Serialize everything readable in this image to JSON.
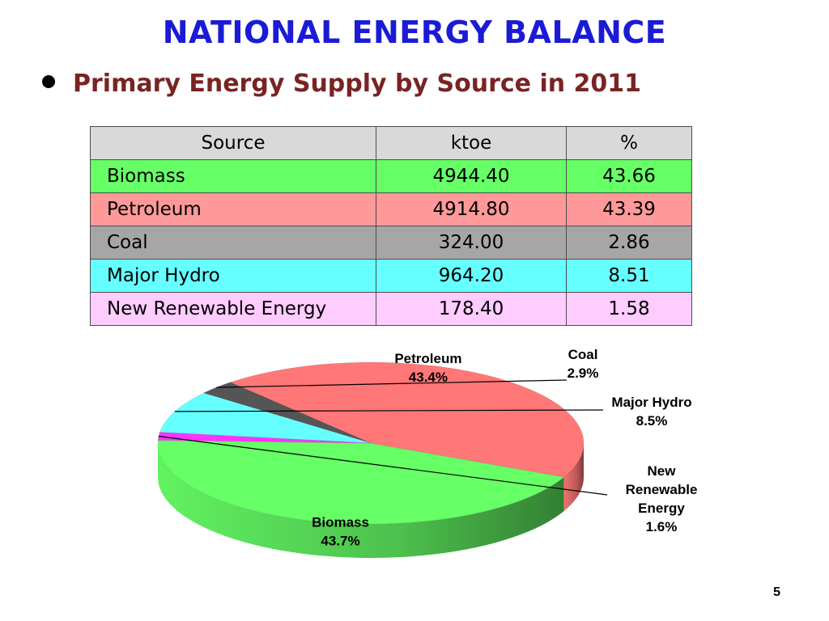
{
  "slide": {
    "title": "NATIONAL ENERGY BALANCE",
    "subtitle": "Primary Energy Supply by Source in 2011",
    "page_number": "5"
  },
  "table": {
    "headers": [
      "Source",
      "ktoe",
      "%"
    ],
    "rows": [
      {
        "source": "Biomass",
        "ktoe": "4944.40",
        "pct": "43.66",
        "color": "#66ff66"
      },
      {
        "source": "Petroleum",
        "ktoe": "4914.80",
        "pct": "43.39",
        "color": "#ff9999"
      },
      {
        "source": "Coal",
        "ktoe": "324.00",
        "pct": "2.86",
        "color": "#a6a6a6"
      },
      {
        "source": "Major Hydro",
        "ktoe": "964.20",
        "pct": "8.51",
        "color": "#66ffff"
      },
      {
        "source": "New Renewable Energy",
        "ktoe": "178.40",
        "pct": "1.58",
        "color": "#ffccff"
      }
    ]
  },
  "chart_data": {
    "type": "pie",
    "style": "3d",
    "title": "",
    "slices": [
      {
        "label": "Biomass",
        "value": 43.7,
        "pct_label": "43.7%",
        "color": "#66ff66"
      },
      {
        "label": "Petroleum",
        "value": 43.4,
        "pct_label": "43.4%",
        "color": "#ff7777"
      },
      {
        "label": "Coal",
        "value": 2.9,
        "pct_label": "2.9%",
        "color": "#555555"
      },
      {
        "label": "Major Hydro",
        "value": 8.5,
        "pct_label": "8.5%",
        "color": "#66ffff"
      },
      {
        "label": "New Renewable Energy",
        "value": 1.6,
        "pct_label": "1.6%",
        "color": "#ff33ff"
      }
    ]
  }
}
